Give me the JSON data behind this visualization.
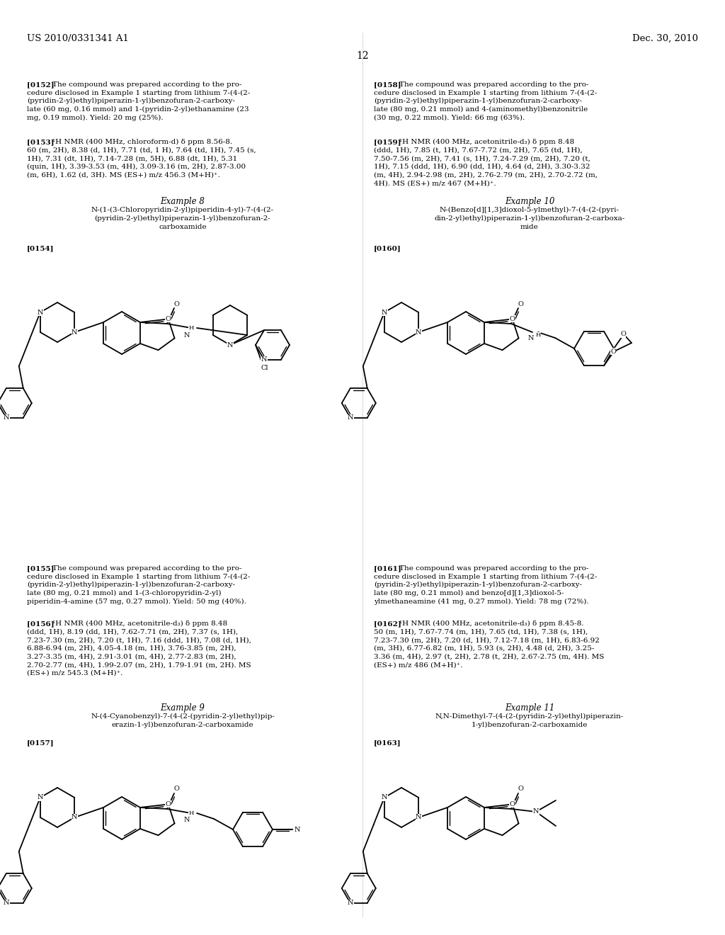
{
  "bg": "#ffffff",
  "header_left": "US 2010/0331341 A1",
  "header_right": "Dec. 30, 2010",
  "page_num": "12",
  "body_fs": 7.5,
  "example_fs": 8.2,
  "tag_fs": 7.5,
  "lw": 1.3,
  "lw_dbl": 0.75
}
